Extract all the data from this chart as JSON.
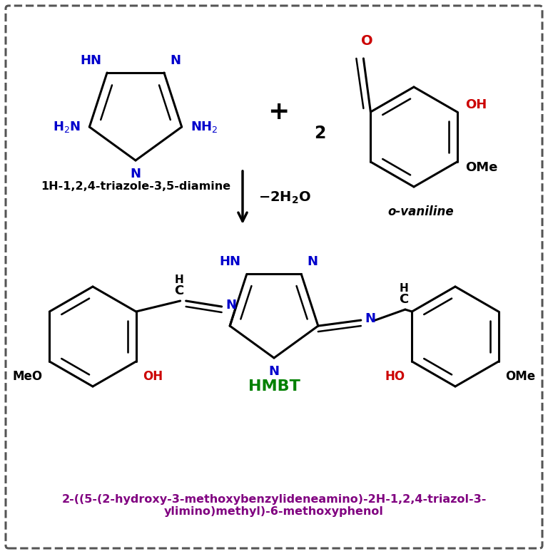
{
  "bg_color": "#ffffff",
  "border_color": "#555555",
  "title_color": "#800080",
  "hmbt_color": "#008000",
  "blue_color": "#0000cc",
  "red_color": "#cc0000",
  "black_color": "#000000",
  "compound1_name": "1H-1,2,4-triazole-3,5-diamine",
  "compound2_name": "o-vaniline",
  "product_name": "HMBT",
  "iupac_line1": "2-((5-(2-hydroxy-3-methoxybenzylideneamino)-2H-1,2,4-triazol-3-",
  "iupac_line2": "ylimino)methyl)-6-methoxyphenol",
  "figsize": [
    7.68,
    7.77
  ],
  "dpi": 100
}
